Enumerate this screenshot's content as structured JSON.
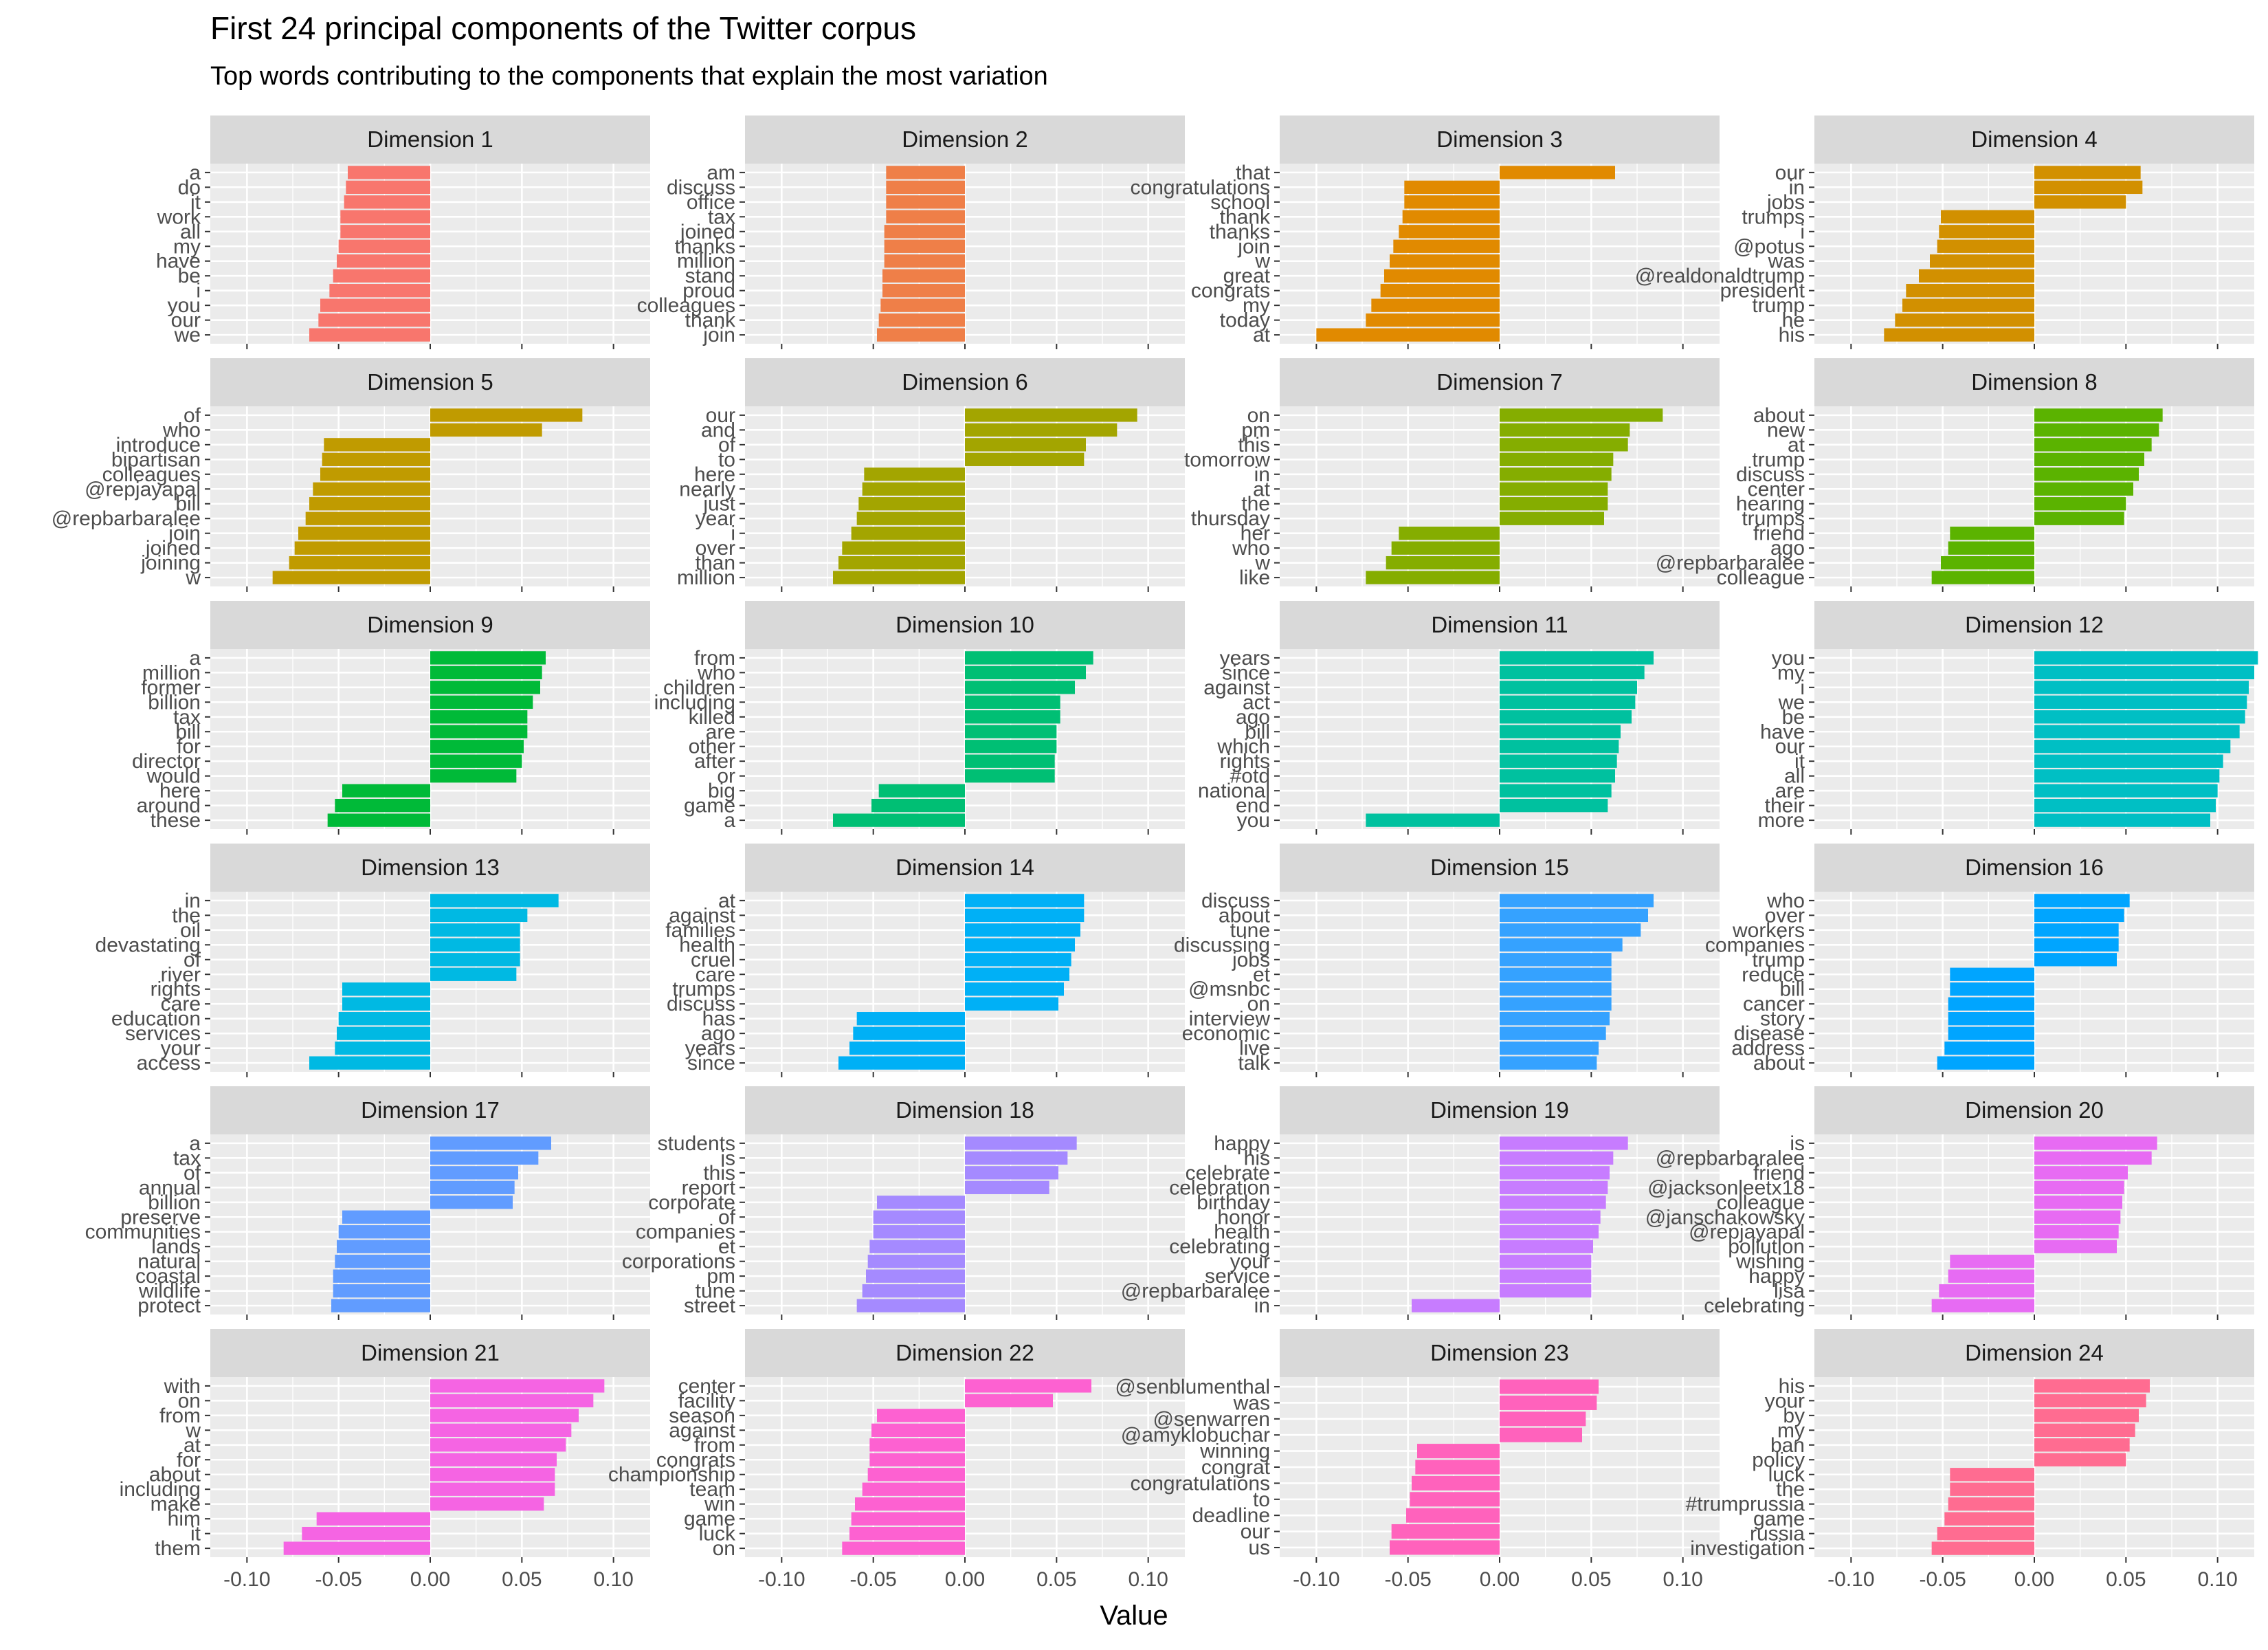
{
  "chart_data": {
    "type": "bar",
    "orientation": "horizontal",
    "title": "First 24 principal components of the Twitter corpus",
    "subtitle": "Top words contributing to the components that explain the most variation",
    "xlabel": "Value",
    "ylabel": "",
    "xlim": [
      -0.12,
      0.12
    ],
    "x_ticks": [
      -0.1,
      -0.05,
      0.0,
      0.05,
      0.1
    ],
    "x_tick_labels": [
      "-0.10",
      "-0.05",
      "0.00",
      "0.05",
      "0.10"
    ],
    "grid": true,
    "legend": "none",
    "facets": [
      {
        "label": "Dimension 1",
        "color": "#F8766D",
        "words": [
          "a",
          "do",
          "it",
          "work",
          "all",
          "my",
          "have",
          "be",
          "i",
          "you",
          "our",
          "we"
        ],
        "values": [
          -0.045,
          -0.046,
          -0.047,
          -0.049,
          -0.049,
          -0.05,
          -0.051,
          -0.053,
          -0.055,
          -0.06,
          -0.061,
          -0.066
        ]
      },
      {
        "label": "Dimension 2",
        "color": "#EF7F48",
        "words": [
          "am",
          "discuss",
          "office",
          "tax",
          "joined",
          "thanks",
          "million",
          "stand",
          "proud",
          "colleagues",
          "thank",
          "join"
        ],
        "values": [
          -0.043,
          -0.043,
          -0.043,
          -0.043,
          -0.044,
          -0.044,
          -0.044,
          -0.045,
          -0.045,
          -0.046,
          -0.047,
          -0.048
        ]
      },
      {
        "label": "Dimension 3",
        "color": "#E18A00",
        "words": [
          "that",
          "congratulations",
          "school",
          "thank",
          "thanks",
          "join",
          "w",
          "great",
          "congrats",
          "my",
          "today",
          "at"
        ],
        "values": [
          0.063,
          -0.052,
          -0.052,
          -0.053,
          -0.055,
          -0.058,
          -0.06,
          -0.063,
          -0.065,
          -0.07,
          -0.073,
          -0.1
        ]
      },
      {
        "label": "Dimension 4",
        "color": "#D29000",
        "words": [
          "our",
          "in",
          "jobs",
          "trumps",
          "i",
          "@potus",
          "was",
          "@realdonaldtrump",
          "president",
          "trump",
          "he",
          "his"
        ],
        "values": [
          0.058,
          0.059,
          0.05,
          -0.051,
          -0.052,
          -0.053,
          -0.057,
          -0.063,
          -0.07,
          -0.072,
          -0.076,
          -0.082
        ]
      },
      {
        "label": "Dimension 5",
        "color": "#C09B00",
        "words": [
          "of",
          "who",
          "introduce",
          "bipartisan",
          "colleagues",
          "@repjayapal",
          "bill",
          "@repbarbaralee",
          "join",
          "joined",
          "joining",
          "w"
        ],
        "values": [
          0.083,
          0.061,
          -0.058,
          -0.059,
          -0.06,
          -0.064,
          -0.066,
          -0.068,
          -0.072,
          -0.074,
          -0.077,
          -0.086
        ]
      },
      {
        "label": "Dimension 6",
        "color": "#A3A500",
        "words": [
          "our",
          "and",
          "of",
          "to",
          "here",
          "nearly",
          "just",
          "year",
          "i",
          "over",
          "than",
          "million"
        ],
        "values": [
          0.094,
          0.083,
          0.066,
          0.065,
          -0.055,
          -0.056,
          -0.058,
          -0.059,
          -0.062,
          -0.067,
          -0.069,
          -0.072
        ]
      },
      {
        "label": "Dimension 7",
        "color": "#85AD00",
        "words": [
          "on",
          "pm",
          "this",
          "tomorrow",
          "in",
          "at",
          "the",
          "thursday",
          "her",
          "who",
          "w",
          "like"
        ],
        "values": [
          0.089,
          0.071,
          0.07,
          0.062,
          0.061,
          0.059,
          0.059,
          0.057,
          -0.055,
          -0.059,
          -0.062,
          -0.073
        ]
      },
      {
        "label": "Dimension 8",
        "color": "#5BB300",
        "words": [
          "about",
          "new",
          "at",
          "trump",
          "discuss",
          "center",
          "hearing",
          "trumps",
          "friend",
          "ago",
          "@repbarbaralee",
          "colleague"
        ],
        "values": [
          0.07,
          0.068,
          0.064,
          0.06,
          0.057,
          0.054,
          0.05,
          0.049,
          -0.046,
          -0.047,
          -0.051,
          -0.056
        ]
      },
      {
        "label": "Dimension 9",
        "color": "#00BA38",
        "words": [
          "a",
          "million",
          "former",
          "billion",
          "tax",
          "bill",
          "for",
          "director",
          "would",
          "here",
          "around",
          "these"
        ],
        "values": [
          0.063,
          0.061,
          0.06,
          0.056,
          0.053,
          0.053,
          0.051,
          0.05,
          0.047,
          -0.048,
          -0.052,
          -0.056
        ]
      },
      {
        "label": "Dimension 10",
        "color": "#00BF74",
        "words": [
          "from",
          "who",
          "children",
          "including",
          "killed",
          "are",
          "other",
          "after",
          "or",
          "big",
          "game",
          "a"
        ],
        "values": [
          0.07,
          0.066,
          0.06,
          0.052,
          0.052,
          0.05,
          0.05,
          0.049,
          0.049,
          -0.047,
          -0.051,
          -0.072
        ]
      },
      {
        "label": "Dimension 11",
        "color": "#00C19F",
        "words": [
          "years",
          "since",
          "against",
          "act",
          "ago",
          "bill",
          "which",
          "rights",
          "#otd",
          "national",
          "end",
          "you"
        ],
        "values": [
          0.084,
          0.079,
          0.075,
          0.074,
          0.072,
          0.066,
          0.065,
          0.064,
          0.063,
          0.061,
          0.059,
          -0.073
        ]
      },
      {
        "label": "Dimension 12",
        "color": "#00BFC4",
        "words": [
          "you",
          "my",
          "i",
          "we",
          "be",
          "have",
          "our",
          "it",
          "all",
          "are",
          "their",
          "more"
        ],
        "values": [
          0.122,
          0.12,
          0.117,
          0.116,
          0.115,
          0.112,
          0.107,
          0.103,
          0.101,
          0.1,
          0.099,
          0.096
        ]
      },
      {
        "label": "Dimension 13",
        "color": "#00B9E3",
        "words": [
          "in",
          "the",
          "oil",
          "devastating",
          "of",
          "river",
          "rights",
          "care",
          "education",
          "services",
          "your",
          "access"
        ],
        "values": [
          0.07,
          0.053,
          0.049,
          0.049,
          0.049,
          0.047,
          -0.048,
          -0.048,
          -0.05,
          -0.051,
          -0.052,
          -0.066
        ]
      },
      {
        "label": "Dimension 14",
        "color": "#00B0F6",
        "words": [
          "at",
          "against",
          "families",
          "health",
          "cruel",
          "care",
          "trumps",
          "discuss",
          "has",
          "ago",
          "years",
          "since"
        ],
        "values": [
          0.065,
          0.065,
          0.063,
          0.06,
          0.058,
          0.057,
          0.054,
          0.051,
          -0.059,
          -0.061,
          -0.063,
          -0.069
        ]
      },
      {
        "label": "Dimension 15",
        "color": "#35A2FF",
        "words": [
          "discuss",
          "about",
          "tune",
          "discussing",
          "jobs",
          "et",
          "@msnbc",
          "on",
          "interview",
          "economic",
          "live",
          "talk"
        ],
        "values": [
          0.084,
          0.081,
          0.077,
          0.067,
          0.061,
          0.061,
          0.061,
          0.061,
          0.06,
          0.058,
          0.054,
          0.053
        ]
      },
      {
        "label": "Dimension 16",
        "color": "#00A5FF",
        "words": [
          "who",
          "over",
          "workers",
          "companies",
          "trump",
          "reduce",
          "bill",
          "cancer",
          "story",
          "disease",
          "address",
          "about"
        ],
        "values": [
          0.052,
          0.049,
          0.046,
          0.046,
          0.045,
          -0.046,
          -0.046,
          -0.047,
          -0.047,
          -0.047,
          -0.049,
          -0.053
        ]
      },
      {
        "label": "Dimension 17",
        "color": "#619CFF",
        "words": [
          "a",
          "tax",
          "of",
          "annual",
          "billion",
          "preserve",
          "communities",
          "lands",
          "natural",
          "coastal",
          "wildlife",
          "protect"
        ],
        "values": [
          0.066,
          0.059,
          0.048,
          0.046,
          0.045,
          -0.048,
          -0.05,
          -0.051,
          -0.052,
          -0.053,
          -0.053,
          -0.054
        ]
      },
      {
        "label": "Dimension 18",
        "color": "#A58AFF",
        "words": [
          "students",
          "is",
          "this",
          "report",
          "corporate",
          "of",
          "companies",
          "et",
          "corporations",
          "pm",
          "tune",
          "street"
        ],
        "values": [
          0.061,
          0.056,
          0.051,
          0.046,
          -0.048,
          -0.05,
          -0.05,
          -0.052,
          -0.053,
          -0.054,
          -0.056,
          -0.059
        ]
      },
      {
        "label": "Dimension 19",
        "color": "#C77CFF",
        "words": [
          "happy",
          "his",
          "celebrate",
          "celebration",
          "birthday",
          "honor",
          "health",
          "celebrating",
          "your",
          "service",
          "@repbarbaralee",
          "in"
        ],
        "values": [
          0.07,
          0.062,
          0.06,
          0.059,
          0.058,
          0.055,
          0.054,
          0.051,
          0.05,
          0.05,
          0.05,
          -0.048
        ]
      },
      {
        "label": "Dimension 20",
        "color": "#E76BF3",
        "words": [
          "is",
          "@repbarbaralee",
          "friend",
          "@jacksonleetx18",
          "colleague",
          "@janschakowsky",
          "@repjayapal",
          "pollution",
          "wishing",
          "happy",
          "lisa",
          "celebrating"
        ],
        "values": [
          0.067,
          0.064,
          0.051,
          0.049,
          0.048,
          0.047,
          0.046,
          0.045,
          -0.046,
          -0.047,
          -0.052,
          -0.056
        ]
      },
      {
        "label": "Dimension 21",
        "color": "#F564E3",
        "words": [
          "with",
          "on",
          "from",
          "w",
          "at",
          "for",
          "about",
          "including",
          "make",
          "him",
          "it",
          "them"
        ],
        "values": [
          0.095,
          0.089,
          0.081,
          0.077,
          0.074,
          0.069,
          0.068,
          0.068,
          0.062,
          -0.062,
          -0.07,
          -0.08
        ]
      },
      {
        "label": "Dimension 22",
        "color": "#FD61D1",
        "words": [
          "center",
          "facility",
          "season",
          "against",
          "from",
          "congrats",
          "championship",
          "team",
          "win",
          "game",
          "luck",
          "on"
        ],
        "values": [
          0.069,
          0.048,
          -0.048,
          -0.051,
          -0.052,
          -0.052,
          -0.053,
          -0.056,
          -0.06,
          -0.062,
          -0.063,
          -0.067
        ]
      },
      {
        "label": "Dimension 23",
        "color": "#FF62BC",
        "words": [
          "@senblumenthal",
          "was",
          "@senwarren",
          "@amyklobuchar",
          "winning",
          "congrat",
          "congratulations",
          "to",
          "deadline",
          "our",
          "us"
        ],
        "values": [
          0.054,
          0.053,
          0.047,
          0.045,
          -0.045,
          -0.046,
          -0.048,
          -0.049,
          -0.051,
          -0.059,
          -0.06
        ]
      },
      {
        "label": "Dimension 24",
        "color": "#FF6C91",
        "words": [
          "his",
          "your",
          "by",
          "my",
          "ban",
          "policy",
          "luck",
          "the",
          "#trumprussia",
          "game",
          "russia",
          "investigation"
        ],
        "values": [
          0.063,
          0.061,
          0.057,
          0.055,
          0.052,
          0.05,
          -0.046,
          -0.046,
          -0.047,
          -0.049,
          -0.053,
          -0.056
        ]
      }
    ]
  }
}
